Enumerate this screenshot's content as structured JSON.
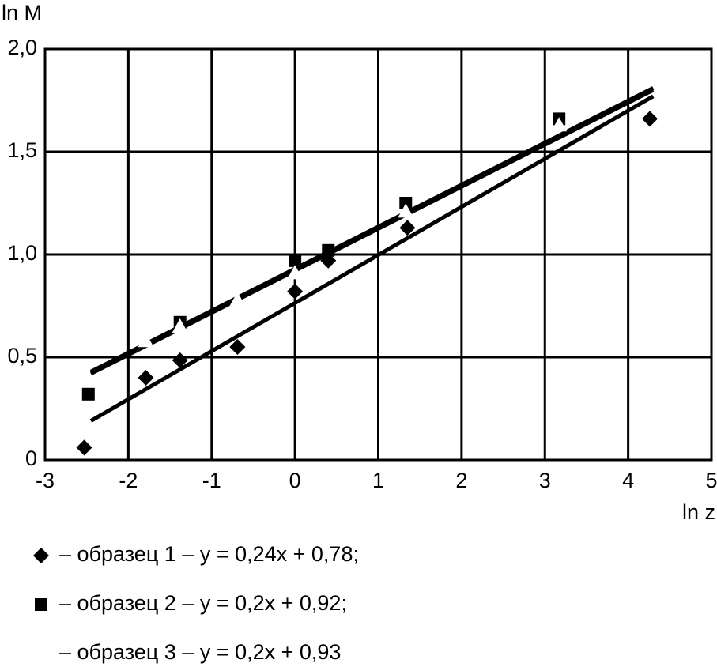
{
  "chart_data": {
    "type": "scatter",
    "x_label": "ln z",
    "y_label": "ln M",
    "xlim": [
      -3,
      5
    ],
    "ylim": [
      0,
      2
    ],
    "xticks": [
      -3,
      -2,
      -1,
      0,
      1,
      2,
      3,
      4,
      5
    ],
    "yticks": [
      0,
      {
        "value": 0.5,
        "label": "0,5"
      },
      {
        "value": 1,
        "label": "1,0"
      },
      {
        "value": 1.5,
        "label": "1,5"
      },
      {
        "value": 2,
        "label": "2,0"
      }
    ],
    "grid": true,
    "series": [
      {
        "label": "– образец 1 – y = 0,24x + 0,78;",
        "marker": "diamond",
        "color": "#000000",
        "x": [
          -2.53,
          -1.79,
          -1.38,
          -0.69,
          0.0,
          0.4,
          1.35,
          4.26
        ],
        "values": [
          0.06,
          0.4,
          0.485,
          0.55,
          0.82,
          0.97,
          1.13,
          1.66
        ],
        "fit": {
          "x": [
            -2.45,
            4.3
          ],
          "y": [
            0.19,
            1.77
          ]
        }
      },
      {
        "label": "– образец 2 – y = 0,2x + 0,92;",
        "marker": "square",
        "color": "#000000",
        "x": [
          -2.48,
          -1.38,
          0.0,
          0.4,
          1.33,
          3.17
        ],
        "values": [
          0.32,
          0.67,
          0.97,
          1.02,
          1.25,
          1.66
        ],
        "fit": {
          "x": [
            -2.45,
            4.3
          ],
          "y": [
            0.42,
            1.8
          ]
        }
      },
      {
        "label": "– образец 3 – y = 0,2x + 0,93",
        "marker": "triangle",
        "color": "#ffffff",
        "x": [
          -1.79,
          -1.38,
          -0.69,
          0.0,
          1.33,
          3.17
        ],
        "values": [
          0.58,
          0.65,
          0.78,
          0.91,
          1.21,
          1.63
        ],
        "fit": {
          "x": [
            -2.45,
            4.3
          ],
          "y": [
            0.43,
            1.81
          ]
        }
      }
    ]
  }
}
